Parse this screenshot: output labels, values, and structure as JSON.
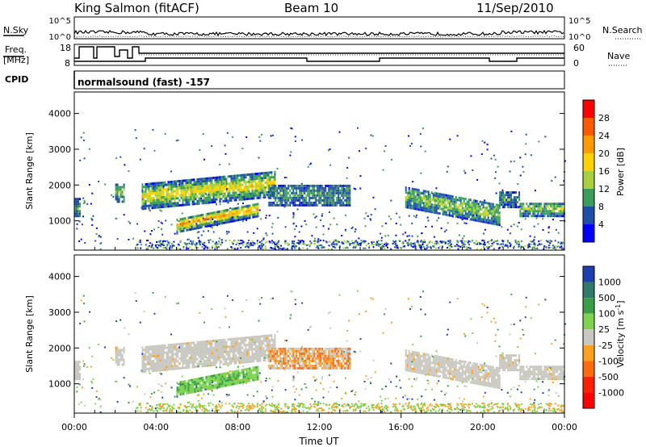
{
  "header": {
    "station": "King Salmon (fitACF)",
    "beam": "Beam 10",
    "date": "11/Sep/2010"
  },
  "top_panels": {
    "nsky_label": "N.Sky",
    "nsky_ticks": [
      "10^5",
      "10^0"
    ],
    "nsky_right_ticks": [
      "10^5",
      "10^0"
    ],
    "nsearch_label": "N.Search",
    "freq_label_line1": "Freq.",
    "freq_label_line2": "[MHz]",
    "freq_ticks": [
      "18",
      "8"
    ],
    "nave_label": "Nave",
    "nave_ticks": [
      "60",
      "0"
    ],
    "cpid_label": "CPID",
    "cpid_text": "normalsound (fast) -157"
  },
  "colorbars": {
    "power": {
      "label": "Power [dB]",
      "ticks": [
        "28",
        "24",
        "20",
        "16",
        "12",
        "8",
        "4"
      ],
      "colors": [
        "#ff0000",
        "#ff5a00",
        "#ff9a00",
        "#ffd200",
        "#a7cf3e",
        "#3a9e5a",
        "#1e4fa8",
        "#0000ff"
      ]
    },
    "velocity": {
      "label": "Velocity [m s",
      "label_sup": "-1",
      "label_end": "]",
      "ticks": [
        "1000",
        "500",
        "100",
        "25",
        "-25",
        "-100",
        "-500",
        "-1000"
      ],
      "colors": [
        "#1e3fb0",
        "#2f7a6a",
        "#3aa048",
        "#7cd44c",
        "#c8c8c0",
        "#ffa020",
        "#ff6a10",
        "#ff2000",
        "#ff0000"
      ]
    }
  },
  "chart_data": [
    {
      "type": "heatmap",
      "title": "Power",
      "ylabel": "Slant Range [km]",
      "yticks": [
        "4000",
        "3000",
        "2000",
        "1000"
      ],
      "ylim": [
        180,
        4600
      ],
      "xlim_hours": [
        0,
        24
      ],
      "blobs": [
        {
          "t0": 3.3,
          "t1": 9.8,
          "r0": 1300,
          "r1": 2000,
          "slope": 350,
          "level": 3
        },
        {
          "t0": 5.0,
          "t1": 9.0,
          "r0": 650,
          "r1": 1050,
          "slope": 450,
          "level": 4
        },
        {
          "t0": 9.5,
          "t1": 13.5,
          "r0": 1400,
          "r1": 2000,
          "slope": 0,
          "level": 1
        },
        {
          "t0": 16.2,
          "t1": 20.8,
          "r0": 1350,
          "r1": 1950,
          "slope": -500,
          "level": 2
        },
        {
          "t0": 20.8,
          "t1": 21.8,
          "r0": 1350,
          "r1": 1800,
          "slope": 0,
          "level": 1
        },
        {
          "t0": 21.8,
          "t1": 24.0,
          "r0": 1100,
          "r1": 1500,
          "slope": 0,
          "level": 2
        },
        {
          "t0": 0.0,
          "t1": 0.3,
          "r0": 1100,
          "r1": 1600,
          "slope": 0,
          "level": 1
        },
        {
          "t0": 2.0,
          "t1": 2.4,
          "r0": 1500,
          "r1": 2000,
          "slope": 0,
          "level": 2
        }
      ]
    },
    {
      "type": "heatmap",
      "title": "Velocity",
      "ylabel": "Slant Range [km]",
      "yticks": [
        "4000",
        "3000",
        "2000",
        "1000"
      ],
      "xticks": [
        "00:00",
        "04:00",
        "08:00",
        "12:00",
        "16:00",
        "20:00",
        "00:00"
      ],
      "xlabel": "Time UT",
      "ylim": [
        180,
        4600
      ],
      "xlim_hours": [
        0,
        24
      ]
    }
  ]
}
